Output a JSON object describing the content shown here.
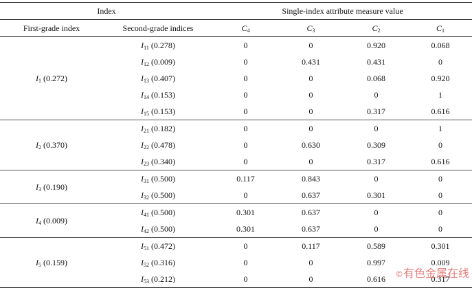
{
  "header": {
    "index": "Index",
    "measure": "Single-index attribute measure value",
    "first_grade": "First-grade index",
    "second_grade": "Second-grade indices",
    "c_cols": [
      {
        "letter": "C",
        "sub": "4"
      },
      {
        "letter": "C",
        "sub": "3"
      },
      {
        "letter": "C",
        "sub": "2"
      },
      {
        "letter": "C",
        "sub": "1"
      }
    ]
  },
  "groups": [
    {
      "first": {
        "letter": "I",
        "sub": "1",
        "weight": " (0.272)"
      },
      "rows": [
        {
          "letter": "I",
          "sub": "11",
          "weight": " (0.278)",
          "values": [
            "0",
            "0",
            "0.920",
            "0.068"
          ]
        },
        {
          "letter": "I",
          "sub": "12",
          "weight": " (0.009)",
          "values": [
            "0",
            "0.431",
            "0.431",
            "0"
          ]
        },
        {
          "letter": "I",
          "sub": "13",
          "weight": " (0.407)",
          "values": [
            "0",
            "0",
            "0.068",
            "0.920"
          ]
        },
        {
          "letter": "I",
          "sub": "14",
          "weight": " (0.153)",
          "values": [
            "0",
            "0",
            "0",
            "1"
          ]
        },
        {
          "letter": "I",
          "sub": "15",
          "weight": " (0.153)",
          "values": [
            "0",
            "0",
            "0.317",
            "0.616"
          ]
        }
      ]
    },
    {
      "first": {
        "letter": "I",
        "sub": "2",
        "weight": " (0.370)"
      },
      "rows": [
        {
          "letter": "I",
          "sub": "21",
          "weight": " (0.182)",
          "values": [
            "0",
            "0",
            "0",
            "1"
          ]
        },
        {
          "letter": "I",
          "sub": "22",
          "weight": " (0.478)",
          "values": [
            "0",
            "0.630",
            "0.309",
            "0"
          ]
        },
        {
          "letter": "I",
          "sub": "23",
          "weight": " (0.340)",
          "values": [
            "0",
            "0",
            "0.317",
            "0.616"
          ]
        }
      ]
    },
    {
      "first": {
        "letter": "I",
        "sub": "3",
        "weight": " (0.190)"
      },
      "rows": [
        {
          "letter": "I",
          "sub": "31",
          "weight": " (0.500)",
          "values": [
            "0.117",
            "0.843",
            "0",
            "0"
          ]
        },
        {
          "letter": "I",
          "sub": "32",
          "weight": " (0.500)",
          "values": [
            "0",
            "0.637",
            "0.301",
            "0"
          ]
        }
      ]
    },
    {
      "first": {
        "letter": "I",
        "sub": "4",
        "weight": " (0.009)"
      },
      "rows": [
        {
          "letter": "I",
          "sub": "41",
          "weight": " (0.500)",
          "values": [
            "0.301",
            "0.637",
            "0",
            "0"
          ]
        },
        {
          "letter": "I",
          "sub": "42",
          "weight": " (0.500)",
          "values": [
            "0.301",
            "0.637",
            "0",
            "0"
          ]
        }
      ]
    },
    {
      "first": {
        "letter": "I",
        "sub": "5",
        "weight": " (0.159)"
      },
      "rows": [
        {
          "letter": "I",
          "sub": "51",
          "weight": " (0.472)",
          "values": [
            "0",
            "0.117",
            "0.589",
            "0.301"
          ]
        },
        {
          "letter": "I",
          "sub": "52",
          "weight": " (0.316)",
          "values": [
            "0",
            "0",
            "0.997",
            "0.009"
          ]
        },
        {
          "letter": "I",
          "sub": "53",
          "weight": " (0.212)",
          "values": [
            "0",
            "0",
            "0.616",
            "0.317"
          ]
        }
      ]
    }
  ],
  "watermark": {
    "text": "有色金属在线",
    "mark": "©",
    "color": "#d9534f"
  }
}
